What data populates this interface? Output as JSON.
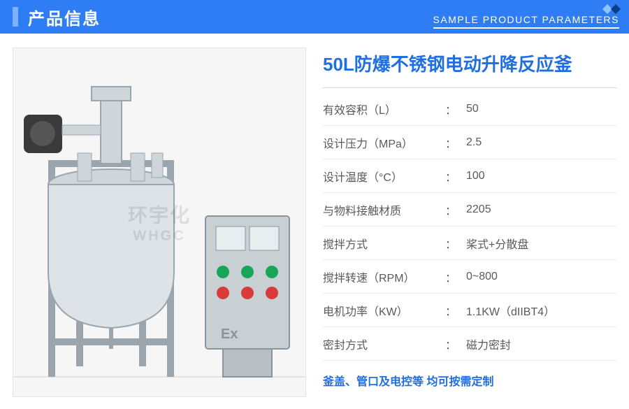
{
  "header": {
    "title": "产品信息",
    "subtitle": "SAMPLE PRODUCT PARAMETERS"
  },
  "product": {
    "title": "50L防爆不锈钢电动升降反应釜"
  },
  "specs": [
    {
      "label": "有效容积（L）",
      "value": "50"
    },
    {
      "label": "设计压力（MPa）",
      "value": "2.5"
    },
    {
      "label": "设计温度（°C）",
      "value": "100"
    },
    {
      "label": "与物料接触材质",
      "value": "2205"
    },
    {
      "label": "搅拌方式",
      "value": "桨式+分散盘"
    },
    {
      "label": "搅拌转速（RPM）",
      "value": "0~800"
    },
    {
      "label": "电机功率（KW）",
      "value": "1.1KW（dIIBT4）"
    },
    {
      "label": "密封方式",
      "value": "磁力密封"
    }
  ],
  "note": "釜盖、管口及电控等 均可按需定制",
  "watermark": {
    "line1": "环宇化",
    "line2": "WHGC"
  },
  "colors": {
    "primary": "#2e7df5",
    "accent": "#1f6fe0",
    "row_border": "#ececec",
    "text": "#5a5a5a"
  }
}
